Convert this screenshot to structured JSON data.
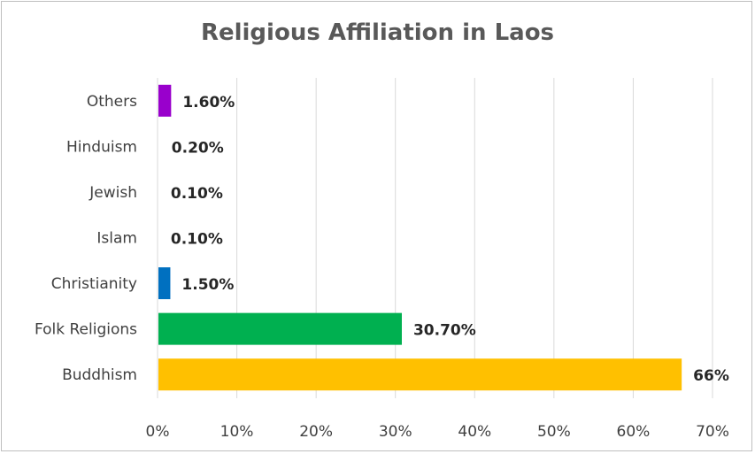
{
  "chart_data": {
    "type": "bar",
    "orientation": "horizontal",
    "title": "Religious Affiliation in Laos",
    "xlabel": "",
    "ylabel": "",
    "xlim": [
      0,
      70
    ],
    "x_ticks": [
      "0%",
      "10%",
      "20%",
      "30%",
      "40%",
      "50%",
      "60%",
      "70%"
    ],
    "x_tick_values": [
      0,
      10,
      20,
      30,
      40,
      50,
      60,
      70
    ],
    "grid": true,
    "legend": "none",
    "categories": [
      "Others",
      "Hinduism",
      "Jewish",
      "Islam",
      "Christianity",
      "Folk Religions",
      "Buddhism"
    ],
    "values": [
      1.6,
      0.2,
      0.1,
      0.1,
      1.5,
      30.7,
      66
    ],
    "data_labels": [
      "1.60%",
      "0.20%",
      "0.10%",
      "0.10%",
      "1.50%",
      "30.70%",
      "66%"
    ],
    "colors": [
      "#9900cc",
      "#ffffff",
      "#ffffff",
      "#ffffff",
      "#0070c0",
      "#00b050",
      "#ffc000"
    ]
  }
}
